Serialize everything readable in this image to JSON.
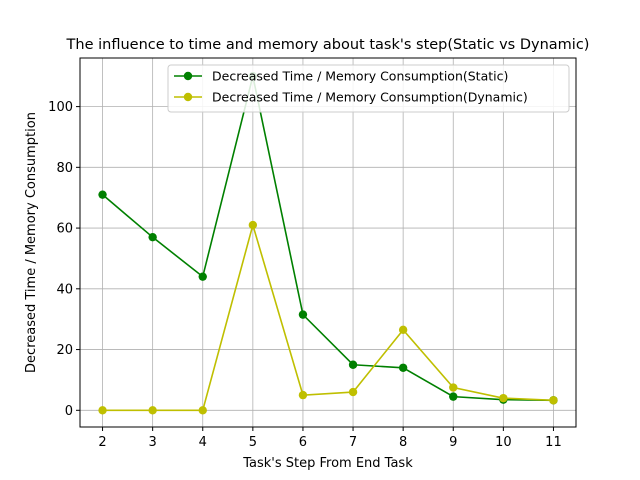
{
  "chart_data": {
    "type": "line",
    "title": "The influence to time and memory about task's step(Static vs Dynamic)",
    "xlabel": "Task's Step From End Task",
    "ylabel": "Decreased Time / Memory Consumption",
    "x": [
      2,
      3,
      4,
      5,
      6,
      7,
      8,
      9,
      10,
      11
    ],
    "xlim": [
      1.55,
      11.45
    ],
    "ylim": [
      -5.5,
      116
    ],
    "xticks": [
      2,
      3,
      4,
      5,
      6,
      7,
      8,
      9,
      10,
      11
    ],
    "yticks": [
      0,
      20,
      40,
      60,
      80,
      100
    ],
    "grid": true,
    "legend_position": "top-right",
    "series": [
      {
        "name": "Decreased Time / Memory Consumption(Static)",
        "color": "#008000",
        "values": [
          71,
          57,
          44,
          110,
          31.5,
          15,
          14,
          4.5,
          3.5,
          3.3
        ]
      },
      {
        "name": "Decreased Time / Memory Consumption(Dynamic)",
        "color": "#bfbf00",
        "values": [
          0,
          0,
          0,
          61,
          5,
          6,
          26.5,
          7.5,
          4,
          3.3
        ]
      }
    ]
  }
}
